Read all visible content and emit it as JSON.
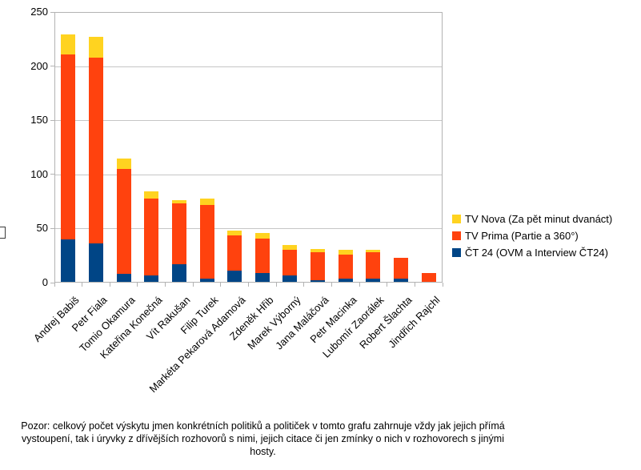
{
  "chart_data": {
    "type": "bar",
    "stacked": true,
    "title": "",
    "categories": [
      "Andrej Babiš",
      "Petr Fiala",
      "Tomio Okamura",
      "Kateřina Konečná",
      "Vít Rakušan",
      "Filip Turek",
      "Markéta Pekarová Adamová",
      "Zdeněk Hřib",
      "Marek Výborný",
      "Jana Maláčová",
      "Petr Macinka",
      "Lubomír Zaorálek",
      "Robert Šlachta",
      "Jindřich Rajchl"
    ],
    "series": [
      {
        "name": "ČT 24 (OVM a Interview ČT24)",
        "color": "#004586",
        "values": [
          40,
          36,
          8,
          7,
          17,
          4,
          11,
          9,
          7,
          2,
          4,
          4,
          4,
          0
        ]
      },
      {
        "name": "TV Prima (Partie a 360°)",
        "color": "#FF420E",
        "values": [
          171,
          172,
          97,
          71,
          56,
          68,
          33,
          32,
          23,
          26,
          22,
          24,
          19,
          9
        ]
      },
      {
        "name": "TV Nova (Za pět minut dvanáct)",
        "color": "#FFD320",
        "values": [
          18,
          19,
          10,
          6,
          3,
          6,
          4,
          5,
          5,
          3,
          4,
          2,
          0,
          0
        ]
      }
    ],
    "totals": [
      229,
      227,
      115,
      84,
      76,
      78,
      48,
      46,
      35,
      31,
      30,
      30,
      23,
      9
    ],
    "ylim": [
      0,
      250
    ],
    "yticks": [
      0,
      50,
      100,
      150,
      200,
      250
    ],
    "grid": true,
    "y_axis_title": "□",
    "legend": {
      "position": "right",
      "entries": [
        {
          "label": "TV Nova (Za pět minut dvanáct)",
          "color": "#FFD320"
        },
        {
          "label": "TV Prima (Partie a 360°)",
          "color": "#FF420E"
        },
        {
          "label": "ČT 24 (OVM a Interview ČT24)",
          "color": "#004586"
        }
      ]
    }
  },
  "caption": {
    "lines": [
      "Pozor: celkový počet výskytu jmen konkrétních politiků a političek v tomto grafu zahrnuje vždy jak jejich přímá",
      "vystoupení, tak i úryvky z dřívějších rozhovorů s nimi, jejich citace či jen zmínky o nich v rozhovorech s jinými",
      "hosty."
    ]
  }
}
